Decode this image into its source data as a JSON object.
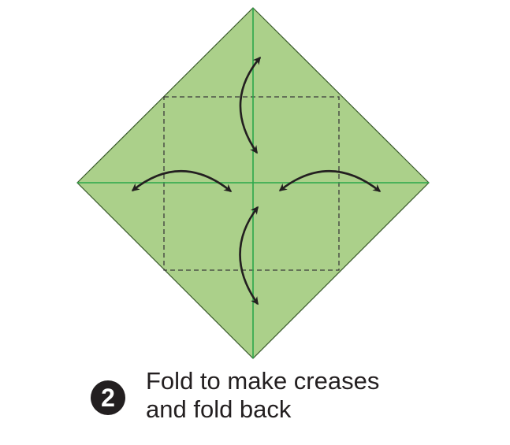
{
  "step": {
    "number": "2",
    "caption_line1": "Fold to make creases",
    "caption_line2": "and fold back"
  },
  "colors": {
    "paper_fill": "#abd08a",
    "paper_edge": "#3a5a2c",
    "crease_line": "#2aa84a",
    "dashed_line": "#3a3a3a",
    "arrow": "#231f20",
    "badge": "#231f20",
    "text": "#231f20"
  },
  "icons": {
    "fold_arrows": "double-headed-curved-arrow"
  }
}
